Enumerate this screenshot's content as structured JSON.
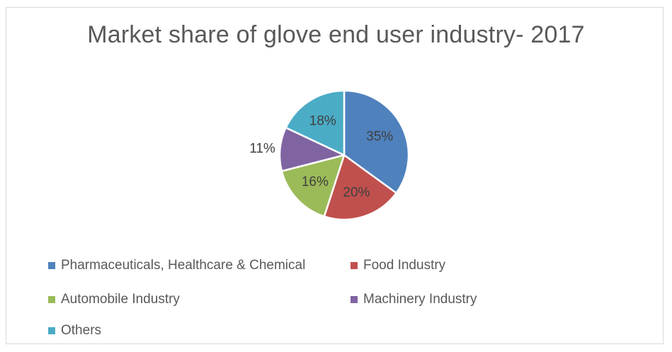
{
  "chart_data": {
    "type": "pie",
    "title": "Market share of glove end user industry- 2017",
    "series": [
      {
        "name": "Pharmaceuticals, Healthcare & Chemical",
        "value": 35,
        "label": "35%",
        "color": "#4F81BD"
      },
      {
        "name": "Food Industry",
        "value": 20,
        "label": "20%",
        "color": "#C0504D"
      },
      {
        "name": "Automobile Industry",
        "value": 16,
        "label": "16%",
        "color": "#9BBB59"
      },
      {
        "name": "Machinery Industry",
        "value": 11,
        "label": "11%",
        "color": "#8064A2"
      },
      {
        "name": "Others",
        "value": 18,
        "label": "18%",
        "color": "#4BACC6"
      }
    ],
    "legend_position": "bottom"
  }
}
